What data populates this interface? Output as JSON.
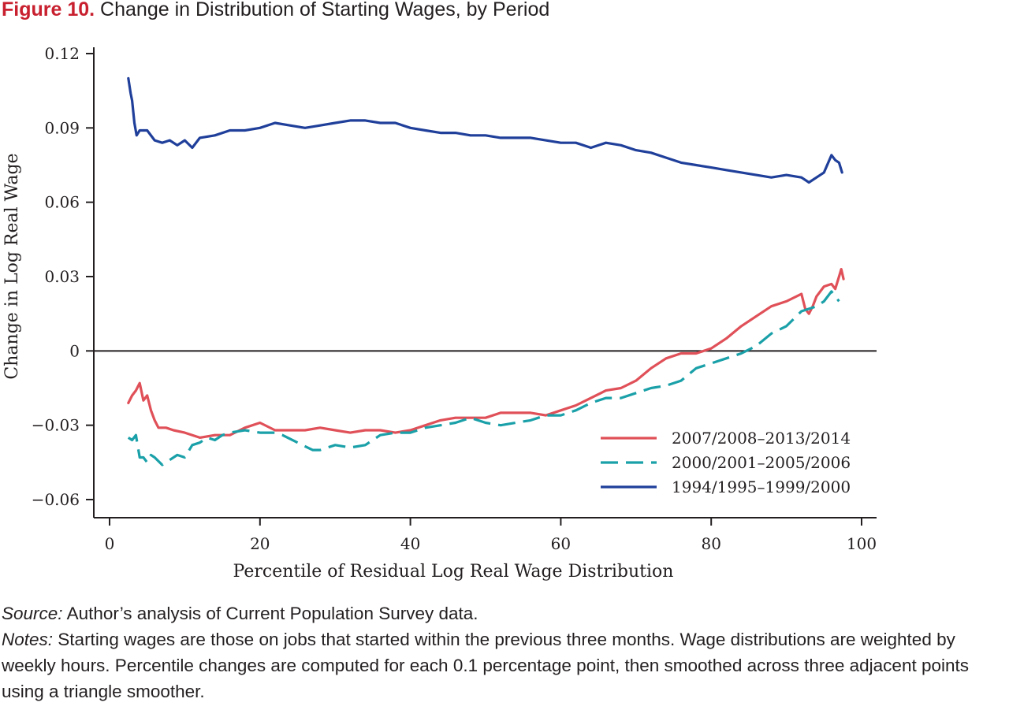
{
  "figure": {
    "number_label": "Figure 10.",
    "title": "Change in Distribution of Starting Wages, by Period"
  },
  "source": {
    "label": "Source:",
    "text": "Author’s analysis of Current Population Survey data."
  },
  "notes": {
    "label": "Notes:",
    "text": "Starting wages are those on jobs that started within the previous three months. Wage distributions are weighted by weekly hours. Percentile changes are computed for each 0.1 percentage point, then smoothed across three adjacent points using a triangle smoother."
  },
  "colors": {
    "series_2007": "#e05058",
    "series_2000": "#1aa0a8",
    "series_1994": "#1f3f9a",
    "axis": "#231f20",
    "title_accent": "#c8202f"
  },
  "chart_data": {
    "type": "line",
    "xlabel": "Percentile of Residual Log Real Wage Distribution",
    "ylabel": "Change in Log Real Wage",
    "xlim": [
      0,
      100
    ],
    "ylim": [
      -0.072,
      0.125
    ],
    "x_ticks": [
      0,
      20,
      40,
      60,
      80,
      100
    ],
    "x_tick_labels": [
      "0",
      "20",
      "40",
      "60",
      "80",
      "100"
    ],
    "y_ticks": [
      -0.06,
      -0.03,
      0,
      0.03,
      0.06,
      0.09,
      0.12
    ],
    "y_tick_labels": [
      "−0.06",
      "−0.03",
      "0",
      "0.03",
      "0.06",
      "0.09",
      "0.12"
    ],
    "zero_line": true,
    "grid": false,
    "legend_position": "bottom-right",
    "series": [
      {
        "name": "2007/2008–2013/2014",
        "style": "solid",
        "color": "#e05058",
        "points": [
          [
            2.5,
            -0.021
          ],
          [
            3.0,
            -0.018
          ],
          [
            3.5,
            -0.016
          ],
          [
            4.0,
            -0.013
          ],
          [
            4.5,
            -0.02
          ],
          [
            5.0,
            -0.018
          ],
          [
            5.5,
            -0.024
          ],
          [
            6.0,
            -0.028
          ],
          [
            6.5,
            -0.031
          ],
          [
            7.5,
            -0.031
          ],
          [
            8.5,
            -0.032
          ],
          [
            10,
            -0.033
          ],
          [
            12,
            -0.035
          ],
          [
            14,
            -0.034
          ],
          [
            16,
            -0.034
          ],
          [
            18,
            -0.031
          ],
          [
            20,
            -0.029
          ],
          [
            22,
            -0.032
          ],
          [
            24,
            -0.032
          ],
          [
            26,
            -0.032
          ],
          [
            28,
            -0.031
          ],
          [
            30,
            -0.032
          ],
          [
            32,
            -0.033
          ],
          [
            34,
            -0.032
          ],
          [
            36,
            -0.032
          ],
          [
            38,
            -0.033
          ],
          [
            40,
            -0.032
          ],
          [
            42,
            -0.03
          ],
          [
            44,
            -0.028
          ],
          [
            46,
            -0.027
          ],
          [
            48,
            -0.027
          ],
          [
            50,
            -0.027
          ],
          [
            52,
            -0.025
          ],
          [
            54,
            -0.025
          ],
          [
            56,
            -0.025
          ],
          [
            58,
            -0.026
          ],
          [
            60,
            -0.024
          ],
          [
            62,
            -0.022
          ],
          [
            64,
            -0.019
          ],
          [
            66,
            -0.016
          ],
          [
            68,
            -0.015
          ],
          [
            70,
            -0.012
          ],
          [
            72,
            -0.007
          ],
          [
            74,
            -0.003
          ],
          [
            76,
            -0.001
          ],
          [
            78,
            -0.001
          ],
          [
            80,
            0.001
          ],
          [
            82,
            0.005
          ],
          [
            84,
            0.01
          ],
          [
            86,
            0.014
          ],
          [
            88,
            0.018
          ],
          [
            90,
            0.02
          ],
          [
            92,
            0.023
          ],
          [
            92.5,
            0.017
          ],
          [
            93,
            0.015
          ],
          [
            93.5,
            0.018
          ],
          [
            94,
            0.022
          ],
          [
            95,
            0.026
          ],
          [
            96,
            0.027
          ],
          [
            96.5,
            0.025
          ],
          [
            97,
            0.03
          ],
          [
            97.3,
            0.033
          ],
          [
            97.6,
            0.029
          ]
        ]
      },
      {
        "name": "2000/2001–2005/2006",
        "style": "dashed",
        "color": "#1aa0a8",
        "points": [
          [
            2.5,
            -0.035
          ],
          [
            3.0,
            -0.036
          ],
          [
            3.5,
            -0.034
          ],
          [
            4.0,
            -0.043
          ],
          [
            4.5,
            -0.043
          ],
          [
            5.0,
            -0.045
          ],
          [
            5.5,
            -0.042
          ],
          [
            6.0,
            -0.043
          ],
          [
            7.0,
            -0.046
          ],
          [
            8.0,
            -0.044
          ],
          [
            9.0,
            -0.042
          ],
          [
            10,
            -0.043
          ],
          [
            11,
            -0.038
          ],
          [
            12,
            -0.037
          ],
          [
            13,
            -0.035
          ],
          [
            14,
            -0.036
          ],
          [
            15,
            -0.034
          ],
          [
            16,
            -0.033
          ],
          [
            18,
            -0.032
          ],
          [
            20,
            -0.033
          ],
          [
            22,
            -0.033
          ],
          [
            23,
            -0.034
          ],
          [
            25,
            -0.037
          ],
          [
            27,
            -0.04
          ],
          [
            28,
            -0.04
          ],
          [
            30,
            -0.038
          ],
          [
            32,
            -0.039
          ],
          [
            34,
            -0.038
          ],
          [
            36,
            -0.034
          ],
          [
            38,
            -0.033
          ],
          [
            40,
            -0.033
          ],
          [
            42,
            -0.031
          ],
          [
            44,
            -0.03
          ],
          [
            46,
            -0.029
          ],
          [
            48,
            -0.027
          ],
          [
            50,
            -0.029
          ],
          [
            52,
            -0.03
          ],
          [
            54,
            -0.029
          ],
          [
            56,
            -0.028
          ],
          [
            58,
            -0.026
          ],
          [
            60,
            -0.026
          ],
          [
            62,
            -0.024
          ],
          [
            64,
            -0.021
          ],
          [
            66,
            -0.019
          ],
          [
            68,
            -0.019
          ],
          [
            70,
            -0.017
          ],
          [
            72,
            -0.015
          ],
          [
            74,
            -0.014
          ],
          [
            76,
            -0.012
          ],
          [
            78,
            -0.007
          ],
          [
            80,
            -0.005
          ],
          [
            82,
            -0.003
          ],
          [
            84,
            -0.001
          ],
          [
            86,
            0.002
          ],
          [
            88,
            0.007
          ],
          [
            90,
            0.01
          ],
          [
            92,
            0.016
          ],
          [
            94,
            0.018
          ],
          [
            95,
            0.02
          ],
          [
            96,
            0.024
          ],
          [
            97,
            0.02
          ]
        ]
      },
      {
        "name": "1994/1995–1999/2000",
        "style": "solid",
        "color": "#1f3f9a",
        "points": [
          [
            2.5,
            0.11
          ],
          [
            2.8,
            0.104
          ],
          [
            3.0,
            0.101
          ],
          [
            3.3,
            0.092
          ],
          [
            3.6,
            0.087
          ],
          [
            4.0,
            0.089
          ],
          [
            5.0,
            0.089
          ],
          [
            6.0,
            0.085
          ],
          [
            7.0,
            0.084
          ],
          [
            8.0,
            0.085
          ],
          [
            9.0,
            0.083
          ],
          [
            10,
            0.085
          ],
          [
            11,
            0.082
          ],
          [
            12,
            0.086
          ],
          [
            14,
            0.087
          ],
          [
            16,
            0.089
          ],
          [
            18,
            0.089
          ],
          [
            20,
            0.09
          ],
          [
            22,
            0.092
          ],
          [
            24,
            0.091
          ],
          [
            26,
            0.09
          ],
          [
            28,
            0.091
          ],
          [
            30,
            0.092
          ],
          [
            32,
            0.093
          ],
          [
            34,
            0.093
          ],
          [
            36,
            0.092
          ],
          [
            38,
            0.092
          ],
          [
            40,
            0.09
          ],
          [
            42,
            0.089
          ],
          [
            44,
            0.088
          ],
          [
            46,
            0.088
          ],
          [
            48,
            0.087
          ],
          [
            50,
            0.087
          ],
          [
            52,
            0.086
          ],
          [
            54,
            0.086
          ],
          [
            56,
            0.086
          ],
          [
            58,
            0.085
          ],
          [
            60,
            0.084
          ],
          [
            62,
            0.084
          ],
          [
            64,
            0.082
          ],
          [
            66,
            0.084
          ],
          [
            68,
            0.083
          ],
          [
            70,
            0.081
          ],
          [
            72,
            0.08
          ],
          [
            74,
            0.078
          ],
          [
            76,
            0.076
          ],
          [
            78,
            0.075
          ],
          [
            80,
            0.074
          ],
          [
            82,
            0.073
          ],
          [
            84,
            0.072
          ],
          [
            86,
            0.071
          ],
          [
            88,
            0.07
          ],
          [
            90,
            0.071
          ],
          [
            92,
            0.07
          ],
          [
            93,
            0.068
          ],
          [
            94,
            0.07
          ],
          [
            95,
            0.072
          ],
          [
            96,
            0.079
          ],
          [
            96.5,
            0.077
          ],
          [
            97,
            0.076
          ],
          [
            97.4,
            0.072
          ]
        ]
      }
    ],
    "legend_order": [
      0,
      1,
      2
    ]
  }
}
